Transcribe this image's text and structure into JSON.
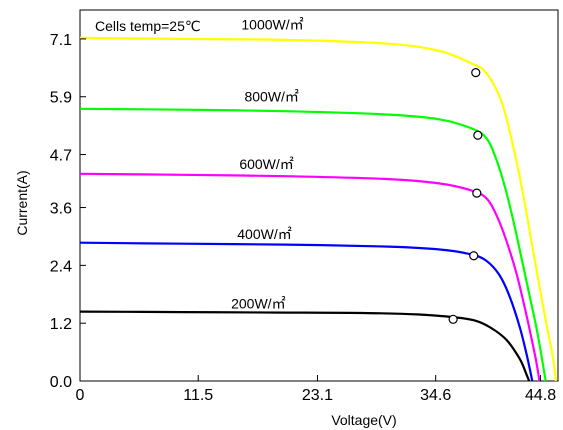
{
  "chart_data": {
    "type": "line",
    "annotation": "Cells temp=25℃",
    "xlabel": "Voltage(V)",
    "ylabel": "Current(A)",
    "xlim": [
      0,
      46.5
    ],
    "ylim": [
      0,
      7.7
    ],
    "x_ticks": [
      {
        "value": 0,
        "label": "0"
      },
      {
        "value": 11.5,
        "label": "11.5"
      },
      {
        "value": 23.1,
        "label": "23.1"
      },
      {
        "value": 34.6,
        "label": "34.6"
      },
      {
        "value": 44.8,
        "label": "44.8"
      }
    ],
    "y_ticks": [
      {
        "value": 0.0,
        "label": "0.0"
      },
      {
        "value": 1.2,
        "label": "1.2"
      },
      {
        "value": 2.4,
        "label": "2.4"
      },
      {
        "value": 3.6,
        "label": "3.6"
      },
      {
        "value": 4.7,
        "label": "4.7"
      },
      {
        "value": 5.9,
        "label": "5.9"
      },
      {
        "value": 7.1,
        "label": "7.1"
      }
    ],
    "grid": false,
    "series": [
      {
        "name": "1000W/㎡",
        "color": "#ffff00",
        "points": [
          [
            0,
            7.12
          ],
          [
            10,
            7.1
          ],
          [
            20,
            7.08
          ],
          [
            30,
            7.0
          ],
          [
            35,
            6.85
          ],
          [
            38,
            6.6
          ],
          [
            39.5,
            6.4
          ],
          [
            41,
            5.8
          ],
          [
            42,
            5.0
          ],
          [
            43,
            4.0
          ],
          [
            44,
            2.8
          ],
          [
            45,
            1.6
          ],
          [
            46,
            0.5
          ],
          [
            46.3,
            0.0
          ]
        ],
        "mpp": [
          38.5,
          6.4
        ],
        "label_anchor": [
          15.7,
          7.3
        ]
      },
      {
        "name": "800W/㎡",
        "color": "#00ff00",
        "points": [
          [
            0,
            5.65
          ],
          [
            10,
            5.63
          ],
          [
            20,
            5.6
          ],
          [
            30,
            5.53
          ],
          [
            35,
            5.43
          ],
          [
            38,
            5.25
          ],
          [
            39.5,
            5.05
          ],
          [
            40.5,
            4.6
          ],
          [
            41.5,
            3.9
          ],
          [
            42.5,
            3.0
          ],
          [
            43.5,
            2.0
          ],
          [
            44.5,
            1.0
          ],
          [
            45.3,
            0.0
          ]
        ],
        "mpp": [
          38.7,
          5.1
        ],
        "label_anchor": [
          16.0,
          5.8
        ]
      },
      {
        "name": "600W/㎡",
        "color": "#ff00ff",
        "points": [
          [
            0,
            4.3
          ],
          [
            10,
            4.28
          ],
          [
            20,
            4.25
          ],
          [
            30,
            4.19
          ],
          [
            35,
            4.1
          ],
          [
            38,
            3.96
          ],
          [
            39.5,
            3.8
          ],
          [
            40.5,
            3.45
          ],
          [
            41.5,
            2.9
          ],
          [
            42.5,
            2.2
          ],
          [
            43.5,
            1.3
          ],
          [
            44.3,
            0.5
          ],
          [
            44.7,
            0.0
          ]
        ],
        "mpp": [
          38.6,
          3.9
        ],
        "label_anchor": [
          15.5,
          4.4
        ]
      },
      {
        "name": "400W/㎡",
        "color": "#0000ff",
        "points": [
          [
            0,
            2.87
          ],
          [
            10,
            2.85
          ],
          [
            20,
            2.83
          ],
          [
            30,
            2.79
          ],
          [
            35,
            2.73
          ],
          [
            38,
            2.63
          ],
          [
            39.5,
            2.5
          ],
          [
            40.8,
            2.2
          ],
          [
            41.8,
            1.75
          ],
          [
            42.8,
            1.1
          ],
          [
            43.5,
            0.5
          ],
          [
            44.0,
            0.0
          ]
        ],
        "mpp": [
          38.3,
          2.6
        ],
        "label_anchor": [
          15.3,
          2.95
        ]
      },
      {
        "name": "200W/㎡",
        "color": "#000000",
        "points": [
          [
            0,
            1.44
          ],
          [
            10,
            1.43
          ],
          [
            20,
            1.42
          ],
          [
            28,
            1.41
          ],
          [
            33,
            1.38
          ],
          [
            36.5,
            1.32
          ],
          [
            38.5,
            1.25
          ],
          [
            40,
            1.1
          ],
          [
            41.5,
            0.85
          ],
          [
            42.8,
            0.45
          ],
          [
            43.5,
            0.1
          ],
          [
            43.7,
            0.0
          ]
        ],
        "mpp": [
          36.3,
          1.28
        ],
        "label_anchor": [
          14.7,
          1.5
        ]
      }
    ]
  }
}
